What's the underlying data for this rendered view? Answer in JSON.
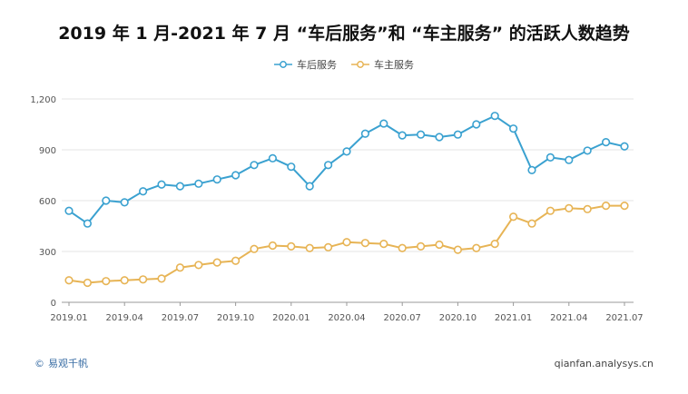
{
  "page": {
    "title": "2019 年 1 月-2021 年 7 月 “车后服务”和 “车主服务” 的活跃人数趋势",
    "footer_brand": "易观千帆",
    "footer_url": "qianfan.analysys.cn",
    "copyright_symbol": "©"
  },
  "chart_data": {
    "type": "line",
    "title": "2019 年 1 月-2021 年 7 月 “车后服务”和 “车主服务” 的活跃人数趋势",
    "xlabel": "",
    "ylabel": "",
    "ylim": [
      0,
      1200
    ],
    "yticks": [
      "0",
      "300",
      "600",
      "900",
      "1,200"
    ],
    "grid": true,
    "legend": "top-center",
    "x_tick_labels": [
      "2019.01",
      "2019.04",
      "2019.07",
      "2019.10",
      "2020.01",
      "2020.04",
      "2020.07",
      "2020.10",
      "2021.01",
      "2021.04",
      "2021.07"
    ],
    "categories": [
      "2019.01",
      "2019.02",
      "2019.03",
      "2019.04",
      "2019.05",
      "2019.06",
      "2019.07",
      "2019.08",
      "2019.09",
      "2019.10",
      "2019.11",
      "2019.12",
      "2020.01",
      "2020.02",
      "2020.03",
      "2020.04",
      "2020.05",
      "2020.06",
      "2020.07",
      "2020.08",
      "2020.09",
      "2020.10",
      "2020.11",
      "2020.12",
      "2021.01",
      "2021.02",
      "2021.03",
      "2021.04",
      "2021.05",
      "2021.06",
      "2021.07"
    ],
    "series": [
      {
        "name": "车后服务",
        "color": "#3aa1d0",
        "values": [
          540,
          465,
          600,
          590,
          655,
          695,
          685,
          700,
          725,
          750,
          810,
          850,
          800,
          685,
          810,
          890,
          995,
          1055,
          985,
          990,
          975,
          990,
          1050,
          1100,
          1025,
          780,
          855,
          840,
          895,
          945,
          920
        ]
      },
      {
        "name": "车主服务",
        "color": "#e7b455",
        "values": [
          130,
          115,
          125,
          130,
          135,
          140,
          205,
          220,
          235,
          245,
          315,
          335,
          330,
          320,
          325,
          355,
          350,
          345,
          320,
          330,
          340,
          310,
          320,
          345,
          505,
          465,
          540,
          555,
          550,
          570,
          570
        ]
      }
    ]
  }
}
